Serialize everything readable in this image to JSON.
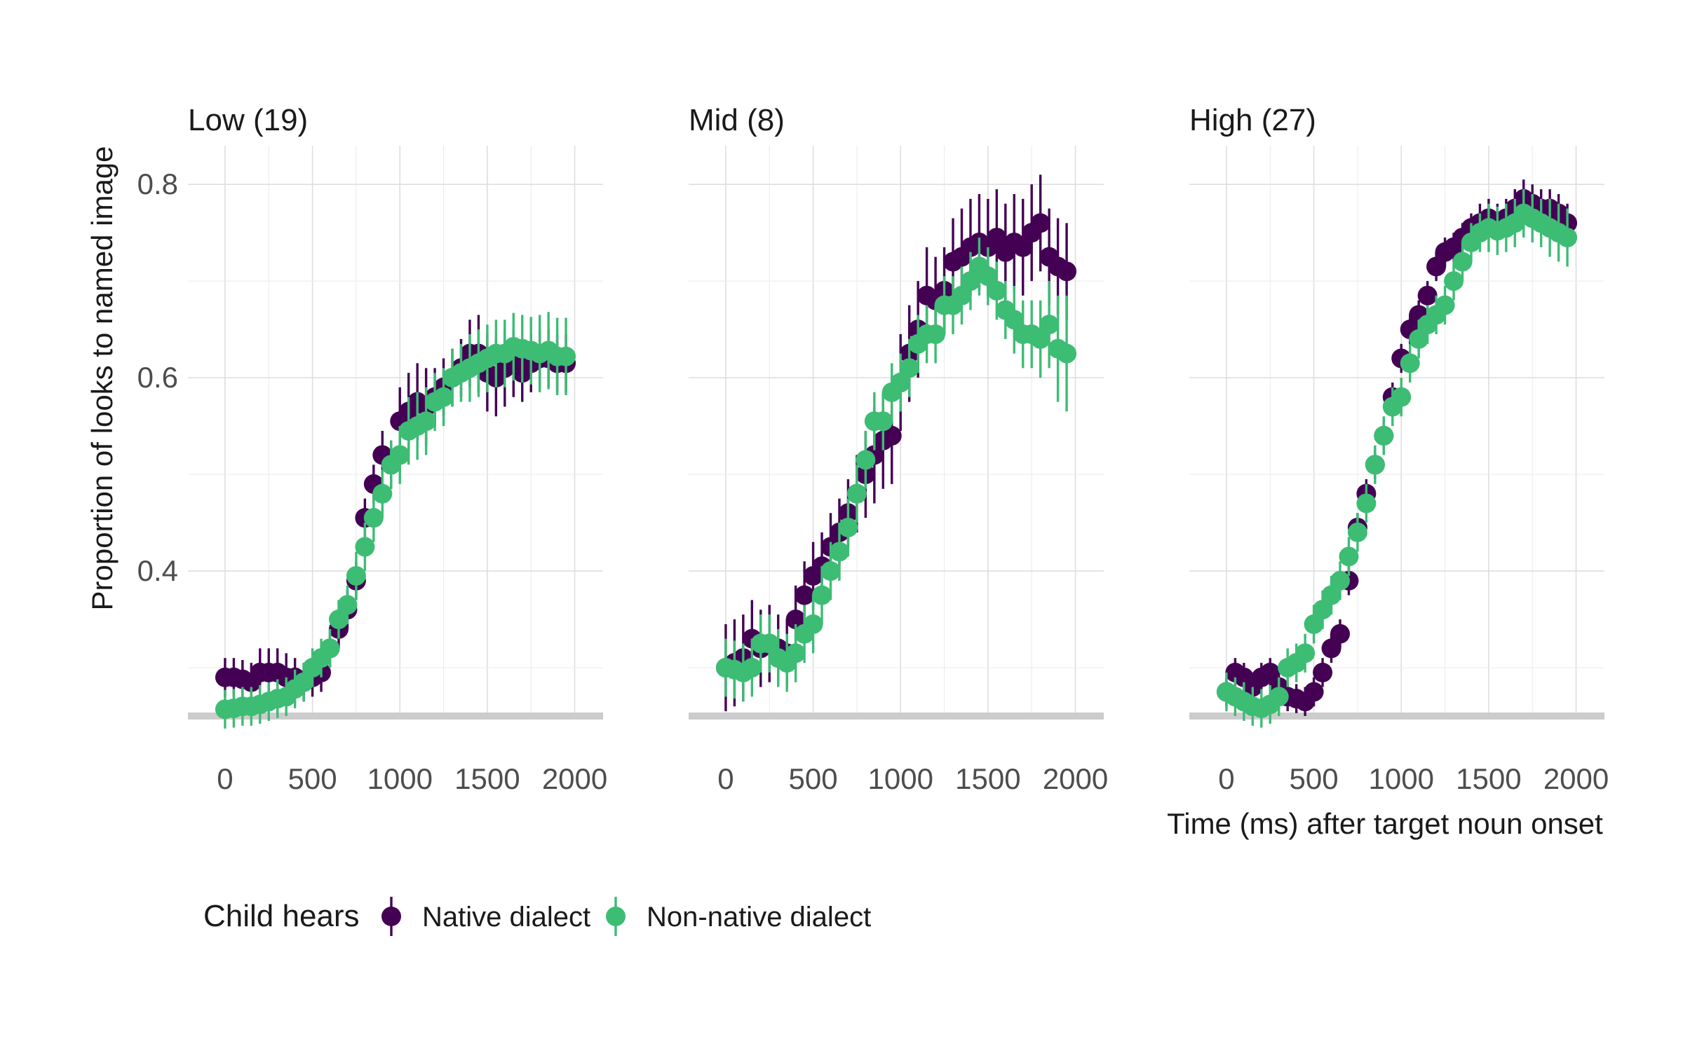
{
  "chart_data": {
    "type": "scatter",
    "ylabel": "Proportion of looks to named image",
    "xlabel": "Time (ms) after target noun onset",
    "xlim": [
      -100,
      2050
    ],
    "ylim": [
      0.25,
      0.84
    ],
    "x_ticks": [
      0,
      500,
      1000,
      1500,
      2000
    ],
    "y_ticks": [
      0.4,
      0.6,
      0.8
    ],
    "grid": true,
    "legend": {
      "position": "bottom-left",
      "title": "Child hears",
      "entries": [
        "Native dialect",
        "Non-native dialect"
      ]
    },
    "colors": {
      "Native dialect": "#440154",
      "Non-native dialect": "#3DBC74"
    },
    "x": [
      0,
      50,
      100,
      150,
      200,
      250,
      300,
      350,
      400,
      450,
      500,
      550,
      600,
      650,
      700,
      750,
      800,
      850,
      900,
      950,
      1000,
      1050,
      1100,
      1150,
      1200,
      1250,
      1300,
      1350,
      1400,
      1450,
      1500,
      1550,
      1600,
      1650,
      1700,
      1750,
      1800,
      1850,
      1900,
      1950
    ],
    "panels": [
      {
        "title": "Low (19)",
        "series": [
          {
            "name": "Native dialect",
            "y": [
              0.29,
              0.29,
              0.288,
              0.285,
              0.295,
              0.295,
              0.295,
              0.29,
              0.29,
              0.285,
              0.29,
              0.295,
              0.32,
              0.34,
              0.36,
              0.39,
              0.455,
              0.49,
              0.52,
              0.51,
              0.555,
              0.565,
              0.575,
              0.57,
              0.58,
              0.59,
              0.6,
              0.61,
              0.625,
              0.625,
              0.605,
              0.6,
              0.61,
              0.615,
              0.605,
              0.615,
              0.62,
              0.62,
              0.615,
              0.615
            ],
            "err": [
              0.02,
              0.02,
              0.02,
              0.02,
              0.025,
              0.025,
              0.025,
              0.025,
              0.02,
              0.02,
              0.02,
              0.02,
              0.02,
              0.02,
              0.02,
              0.02,
              0.02,
              0.02,
              0.025,
              0.025,
              0.035,
              0.04,
              0.04,
              0.04,
              0.03,
              0.03,
              0.03,
              0.03,
              0.035,
              0.04,
              0.04,
              0.04,
              0.04,
              0.035,
              0.03,
              0.03,
              0.03,
              0.03,
              0.03,
              0.03
            ]
          },
          {
            "name": "Non-native dialect",
            "y": [
              0.257,
              0.258,
              0.26,
              0.26,
              0.262,
              0.265,
              0.268,
              0.27,
              0.278,
              0.285,
              0.3,
              0.31,
              0.32,
              0.35,
              0.365,
              0.395,
              0.425,
              0.455,
              0.48,
              0.51,
              0.52,
              0.545,
              0.55,
              0.555,
              0.575,
              0.58,
              0.6,
              0.605,
              0.61,
              0.615,
              0.62,
              0.625,
              0.625,
              0.632,
              0.63,
              0.628,
              0.625,
              0.628,
              0.622,
              0.622
            ],
            "err": [
              0.02,
              0.02,
              0.02,
              0.02,
              0.02,
              0.02,
              0.02,
              0.02,
              0.02,
              0.02,
              0.02,
              0.02,
              0.02,
              0.02,
              0.02,
              0.025,
              0.025,
              0.025,
              0.025,
              0.025,
              0.03,
              0.035,
              0.035,
              0.035,
              0.03,
              0.03,
              0.03,
              0.03,
              0.035,
              0.035,
              0.035,
              0.035,
              0.035,
              0.035,
              0.035,
              0.035,
              0.04,
              0.04,
              0.04,
              0.04
            ]
          }
        ]
      },
      {
        "title": "Mid (8)",
        "series": [
          {
            "name": "Native dialect",
            "y": [
              0.3,
              0.305,
              0.31,
              0.33,
              0.32,
              0.325,
              0.32,
              0.315,
              0.35,
              0.375,
              0.395,
              0.405,
              0.425,
              0.44,
              0.46,
              0.48,
              0.5,
              0.52,
              0.535,
              0.54,
              0.595,
              0.625,
              0.65,
              0.685,
              0.68,
              0.69,
              0.72,
              0.725,
              0.735,
              0.74,
              0.735,
              0.745,
              0.73,
              0.74,
              0.735,
              0.75,
              0.76,
              0.725,
              0.715,
              0.71
            ],
            "err": [
              0.045,
              0.045,
              0.045,
              0.04,
              0.04,
              0.04,
              0.035,
              0.035,
              0.035,
              0.035,
              0.035,
              0.035,
              0.035,
              0.035,
              0.035,
              0.04,
              0.045,
              0.05,
              0.05,
              0.05,
              0.05,
              0.05,
              0.05,
              0.05,
              0.045,
              0.045,
              0.045,
              0.05,
              0.05,
              0.05,
              0.05,
              0.05,
              0.05,
              0.05,
              0.05,
              0.05,
              0.05,
              0.05,
              0.05,
              0.05
            ]
          },
          {
            "name": "Non-native dialect",
            "y": [
              0.3,
              0.298,
              0.295,
              0.3,
              0.325,
              0.325,
              0.31,
              0.305,
              0.315,
              0.335,
              0.345,
              0.375,
              0.4,
              0.42,
              0.445,
              0.48,
              0.515,
              0.555,
              0.555,
              0.585,
              0.595,
              0.61,
              0.635,
              0.645,
              0.645,
              0.675,
              0.675,
              0.685,
              0.7,
              0.715,
              0.705,
              0.69,
              0.67,
              0.66,
              0.645,
              0.645,
              0.64,
              0.655,
              0.63,
              0.625
            ],
            "err": [
              0.03,
              0.03,
              0.03,
              0.03,
              0.03,
              0.03,
              0.03,
              0.03,
              0.03,
              0.03,
              0.03,
              0.03,
              0.03,
              0.03,
              0.03,
              0.03,
              0.03,
              0.03,
              0.03,
              0.03,
              0.03,
              0.03,
              0.03,
              0.03,
              0.03,
              0.03,
              0.03,
              0.03,
              0.03,
              0.03,
              0.03,
              0.03,
              0.03,
              0.035,
              0.035,
              0.035,
              0.04,
              0.045,
              0.055,
              0.06
            ]
          }
        ]
      },
      {
        "title": "High (27)",
        "series": [
          {
            "name": "Native dialect",
            "y": [
              0.275,
              0.295,
              0.29,
              0.28,
              0.29,
              0.295,
              0.28,
              0.27,
              0.268,
              0.265,
              0.275,
              0.295,
              0.32,
              0.335,
              0.39,
              0.445,
              0.48,
              0.51,
              0.54,
              0.58,
              0.62,
              0.65,
              0.665,
              0.685,
              0.715,
              0.73,
              0.735,
              0.745,
              0.755,
              0.76,
              0.765,
              0.76,
              0.765,
              0.775,
              0.785,
              0.78,
              0.775,
              0.775,
              0.77,
              0.76
            ],
            "err": [
              0.015,
              0.015,
              0.015,
              0.015,
              0.015,
              0.015,
              0.015,
              0.015,
              0.015,
              0.015,
              0.015,
              0.015,
              0.015,
              0.015,
              0.015,
              0.015,
              0.015,
              0.015,
              0.015,
              0.015,
              0.015,
              0.015,
              0.015,
              0.015,
              0.015,
              0.015,
              0.015,
              0.015,
              0.015,
              0.02,
              0.02,
              0.02,
              0.02,
              0.02,
              0.02,
              0.02,
              0.02,
              0.02,
              0.02,
              0.02
            ]
          },
          {
            "name": "Non-native dialect",
            "y": [
              0.275,
              0.27,
              0.265,
              0.26,
              0.258,
              0.262,
              0.27,
              0.3,
              0.305,
              0.315,
              0.345,
              0.36,
              0.375,
              0.39,
              0.415,
              0.44,
              0.47,
              0.51,
              0.54,
              0.57,
              0.58,
              0.615,
              0.64,
              0.655,
              0.665,
              0.675,
              0.7,
              0.72,
              0.74,
              0.75,
              0.755,
              0.752,
              0.755,
              0.76,
              0.77,
              0.765,
              0.76,
              0.755,
              0.75,
              0.745
            ],
            "err": [
              0.02,
              0.02,
              0.02,
              0.02,
              0.02,
              0.02,
              0.02,
              0.02,
              0.02,
              0.02,
              0.02,
              0.02,
              0.02,
              0.02,
              0.02,
              0.02,
              0.02,
              0.02,
              0.02,
              0.02,
              0.02,
              0.02,
              0.02,
              0.02,
              0.02,
              0.02,
              0.02,
              0.02,
              0.02,
              0.02,
              0.025,
              0.025,
              0.025,
              0.025,
              0.025,
              0.025,
              0.025,
              0.03,
              0.03,
              0.03
            ]
          }
        ]
      }
    ]
  }
}
